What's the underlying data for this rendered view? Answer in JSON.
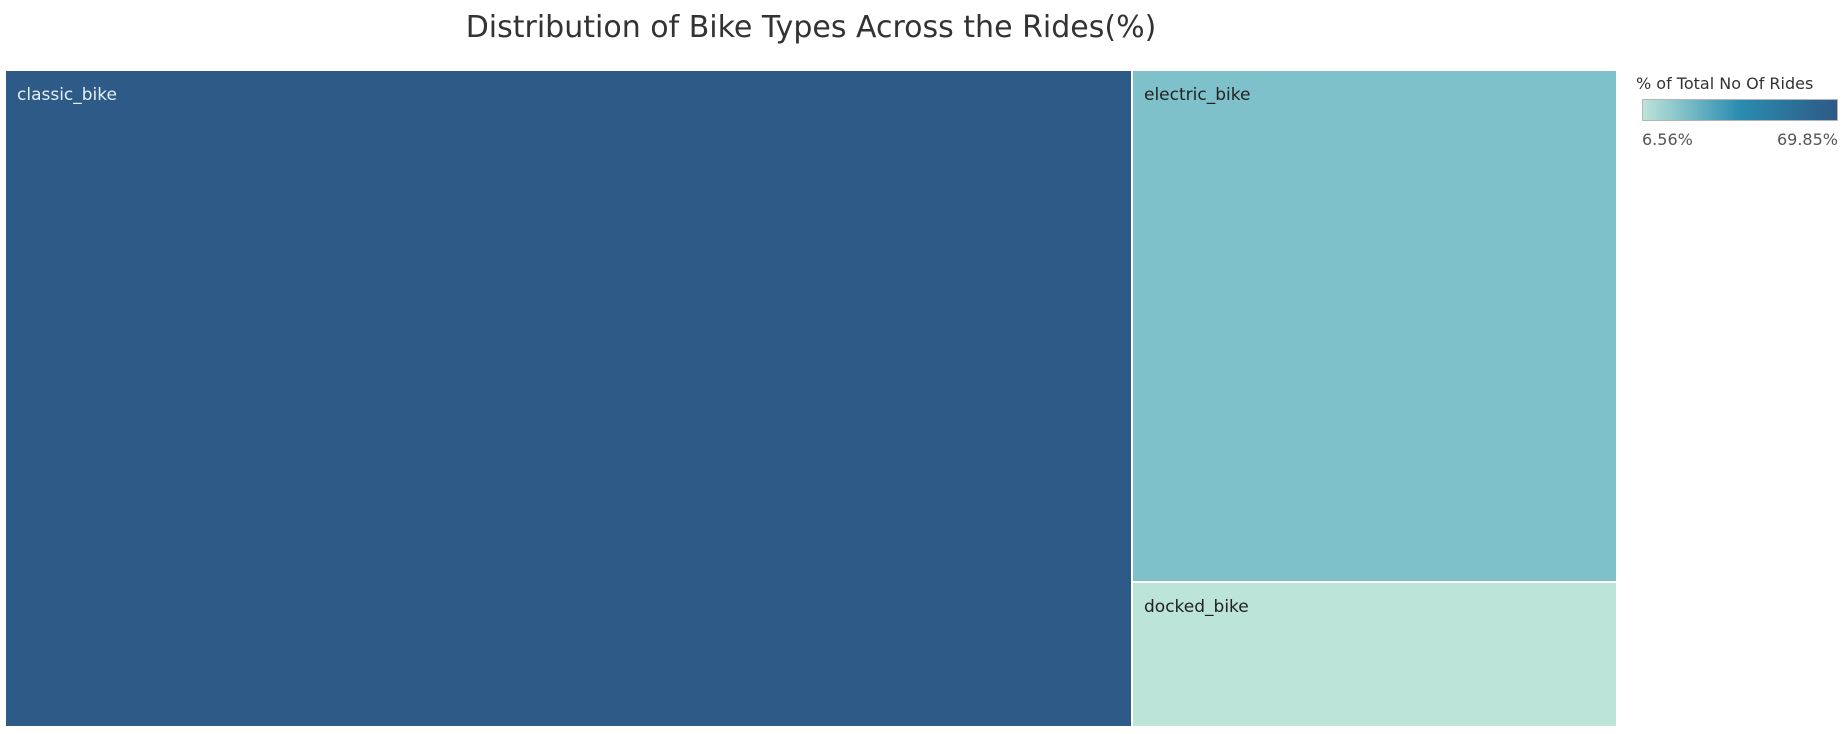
{
  "chart_data": {
    "type": "treemap",
    "title": "Distribution of Bike Types Across the Rides(%)",
    "measure": "% of Total No Of Rides",
    "tiles": [
      {
        "label": "classic_bike",
        "value": 69.85,
        "color": "#2d5a86",
        "label_color": "#e6eef5"
      },
      {
        "label": "electric_bike",
        "value": 23.59,
        "color": "#7fc1ca",
        "label_color": "#222222"
      },
      {
        "label": "docked_bike",
        "value": 6.56,
        "color": "#bde4d9",
        "label_color": "#222222"
      }
    ],
    "legend": {
      "title": "% of Total No Of Rides",
      "min_label": "6.56%",
      "max_label": "69.85%",
      "gradient": [
        "#bde4d9",
        "#2a8cb0",
        "#2d5a86"
      ]
    }
  }
}
